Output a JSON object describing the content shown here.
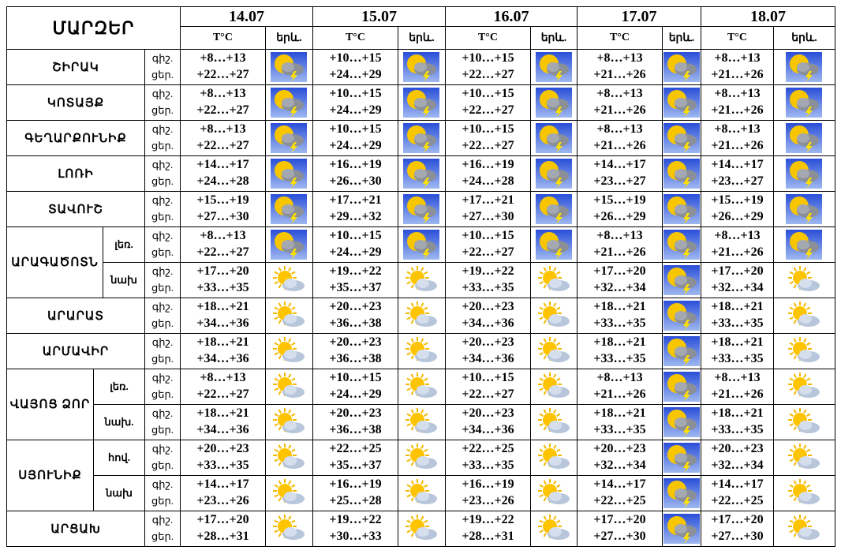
{
  "header": {
    "regions": "ՄԱՐԶԵՐ",
    "dates": [
      "14.07",
      "15.07",
      "16.07",
      "17.07",
      "18.07"
    ],
    "temp": "T°C",
    "weather": "երև."
  },
  "regions": [
    {
      "name": "ՇԻՐԱԿ",
      "rows": [
        {
          "night": "գիշ.",
          "day": "ցեր.",
          "days": [
            [
              "+8…+13",
              "+22…+27"
            ],
            [
              "+10…+15",
              "+24…+29"
            ],
            [
              "+10…+15",
              "+22…+27"
            ],
            [
              "+8…+13",
              "+21…+26"
            ],
            [
              "+8…+13",
              "+21…+26"
            ]
          ]
        }
      ]
    },
    {
      "name": "ԿՈՏԱՅՔ",
      "rows": [
        {
          "night": "գիշ.",
          "day": "ցեր.",
          "days": [
            [
              "+8…+13",
              "+22…+27"
            ],
            [
              "+10…+15",
              "+24…+29"
            ],
            [
              "+10…+15",
              "+22…+27"
            ],
            [
              "+8…+13",
              "+21…+26"
            ],
            [
              "+8…+13",
              "+21…+26"
            ]
          ]
        }
      ]
    },
    {
      "name": "ԳԵՂԱՐՔՈՒՆԻՔ",
      "rows": [
        {
          "night": "գիշ.",
          "day": "ցեր.",
          "days": [
            [
              "+8…+13",
              "+22…+27"
            ],
            [
              "+10…+15",
              "+24…+29"
            ],
            [
              "+10…+15",
              "+22…+27"
            ],
            [
              "+8…+13",
              "+21…+26"
            ],
            [
              "+8…+13",
              "+21…+26"
            ]
          ]
        }
      ]
    },
    {
      "name": "ԼՈՌԻ",
      "rows": [
        {
          "night": "գիշ.",
          "day": "ցեր.",
          "days": [
            [
              "+14…+17",
              "+24…+28"
            ],
            [
              "+16…+19",
              "+26…+30"
            ],
            [
              "+16…+19",
              "+24…+28"
            ],
            [
              "+14…+17",
              "+23…+27"
            ],
            [
              "+14…+17",
              "+23…+27"
            ]
          ]
        }
      ]
    },
    {
      "name": "ՏԱՎՈՒՇ",
      "rows": [
        {
          "night": "գիշ.",
          "day": "ցեր.",
          "days": [
            [
              "+15…+19",
              "+27…+30"
            ],
            [
              "+17…+21",
              "+29…+32"
            ],
            [
              "+17…+21",
              "+27…+30"
            ],
            [
              "+15…+19",
              "+26…+29"
            ],
            [
              "+15…+19",
              "+26…+29"
            ]
          ]
        }
      ]
    },
    {
      "name": "ԱՐԱԳԱԾՈՏՆ",
      "rows": [
        {
          "sub": "լեռ.",
          "night": "գիշ.",
          "day": "ցեր.",
          "days": [
            [
              "+8…+13",
              "+22…+27"
            ],
            [
              "+10…+15",
              "+24…+29"
            ],
            [
              "+10…+15",
              "+22…+27"
            ],
            [
              "+8…+13",
              "+21…+26"
            ],
            [
              "+8…+13",
              "+21…+26"
            ]
          ]
        },
        {
          "sub": "նախ",
          "night": "գիշ.",
          "day": "ցեր.",
          "days": [
            [
              "+17…+20",
              "+33…+35"
            ],
            [
              "+19…+22",
              "+35…+37"
            ],
            [
              "+19…+22",
              "+33…+35"
            ],
            [
              "+17…+20",
              "+32…+34"
            ],
            [
              "+17…+20",
              "+32…+34"
            ]
          ]
        }
      ]
    },
    {
      "name": "ԱՐԱՐԱՏ",
      "rows": [
        {
          "night": "գիշ.",
          "day": "ցեր.",
          "days": [
            [
              "+18…+21",
              "+34…+36"
            ],
            [
              "+20…+23",
              "+36…+38"
            ],
            [
              "+20…+23",
              "+34…+36"
            ],
            [
              "+18…+21",
              "+33…+35"
            ],
            [
              "+18…+21",
              "+33…+35"
            ]
          ]
        }
      ]
    },
    {
      "name": "ԱՐՄԱՎԻՐ",
      "rows": [
        {
          "night": "գիշ.",
          "day": "ցեր.",
          "days": [
            [
              "+18…+21",
              "+34…+36"
            ],
            [
              "+20…+23",
              "+36…+38"
            ],
            [
              "+20…+23",
              "+34…+36"
            ],
            [
              "+18…+21",
              "+33…+35"
            ],
            [
              "+18…+21",
              "+33…+35"
            ]
          ]
        }
      ]
    },
    {
      "name": "ՎԱՅՈՑ ՁՈՐ",
      "rows": [
        {
          "sub": "լեռ.",
          "night": "գիշ.",
          "day": "ցեր.",
          "days": [
            [
              "+8…+13",
              "+22…+27"
            ],
            [
              "+10…+15",
              "+24…+29"
            ],
            [
              "+10…+15",
              "+22…+27"
            ],
            [
              "+8…+13",
              "+21…+26"
            ],
            [
              "+8…+13",
              "+21…+26"
            ]
          ]
        },
        {
          "sub": "նախ.",
          "night": "գիշ.",
          "day": "ցեր.",
          "days": [
            [
              "+18…+21",
              "+34…+36"
            ],
            [
              "+20…+23",
              "+36…+38"
            ],
            [
              "+20…+23",
              "+34…+36"
            ],
            [
              "+18…+21",
              "+33…+35"
            ],
            [
              "+18…+21",
              "+33…+35"
            ]
          ]
        }
      ]
    },
    {
      "name": "ՍՅՈՒՆԻՔ",
      "rows": [
        {
          "sub": "հով.",
          "night": "գիշ.",
          "day": "ցեր.",
          "days": [
            [
              "+20…+23",
              "+33…+35"
            ],
            [
              "+22…+25",
              "+35…+37"
            ],
            [
              "+22…+25",
              "+33…+35"
            ],
            [
              "+20…+23",
              "+32…+34"
            ],
            [
              "+20…+23",
              "+32…+34"
            ]
          ]
        },
        {
          "sub": "նախ",
          "night": "գիշ.",
          "day": "ցեր.",
          "days": [
            [
              "+14…+17",
              "+23…+26"
            ],
            [
              "+16…+19",
              "+25…+28"
            ],
            [
              "+16…+19",
              "+23…+26"
            ],
            [
              "+14…+17",
              "+22…+25"
            ],
            [
              "+14…+17",
              "+22…+25"
            ]
          ]
        }
      ]
    },
    {
      "name": "ԱՐՑԱԽ",
      "rows": [
        {
          "night": "գիշ.",
          "day": "ցեր.",
          "days": [
            [
              "+17…+20",
              "+28…+31"
            ],
            [
              "+19…+22",
              "+30…+33"
            ],
            [
              "+19…+22",
              "+28…+31"
            ],
            [
              "+17…+20",
              "+27…+30"
            ],
            [
              "+17…+20",
              "+27…+30"
            ]
          ]
        }
      ]
    }
  ]
}
